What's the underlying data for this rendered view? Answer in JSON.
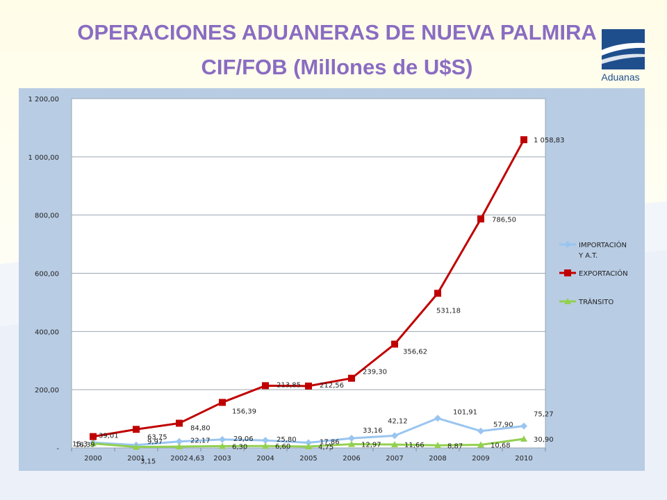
{
  "page": {
    "title_line1": "OPERACIONES ADUANERAS DE NUEVA PALMIRA",
    "title_line2": "CIF/FOB  (Millones de U$S)",
    "logo_text": "Aduanas",
    "colors": {
      "title": "#8a6cc2",
      "panel": "#b8cce4",
      "plot_bg": "#ffffff",
      "logo": "#1f4e8c"
    }
  },
  "chart_data": {
    "type": "line",
    "title": "",
    "xlabel": "",
    "ylabel": "",
    "categories": [
      "2000",
      "2001",
      "2002",
      "2003",
      "2004",
      "2005",
      "2006",
      "2007",
      "2008",
      "2009",
      "2010"
    ],
    "ylim": [
      0,
      1200
    ],
    "yticks": [
      0,
      200,
      400,
      600,
      800,
      1000,
      1200
    ],
    "ytick_labels": [
      "-",
      "200,00",
      "400,00",
      "600,00",
      "800,00",
      "1 000,00",
      "1 200,00"
    ],
    "grid": "horizontal",
    "legend_position": "right",
    "series": [
      {
        "name": "IMPORTACIÓN Y A.T.",
        "name_lines": [
          "IMPORTACIÓN",
          "Y A.T."
        ],
        "color": "#99c5f0",
        "marker": "diamond",
        "values": [
          18.39,
          9.97,
          22.17,
          29.06,
          25.8,
          17.86,
          33.16,
          42.12,
          101.91,
          57.9,
          75.27
        ],
        "labels": [
          "18,39",
          "9,97",
          "22,17",
          "29,06",
          "25,80",
          "17,86",
          "33,16",
          "42,12",
          "101,91",
          "57,90",
          "75,27"
        ]
      },
      {
        "name": "EXPORTACIÓN",
        "name_lines": [
          "EXPORTACIÓN"
        ],
        "color": "#c00000",
        "marker": "square",
        "values": [
          39.01,
          63.75,
          84.8,
          156.39,
          213.85,
          212.56,
          239.3,
          356.62,
          531.18,
          786.5,
          1058.83
        ],
        "labels": [
          "39,01",
          "63,75",
          "84,80",
          "156,39",
          "213,85",
          "212,56",
          "239,30",
          "356,62",
          "531,18",
          "786,50",
          "1 058,83"
        ]
      },
      {
        "name": "TRÁNSITO",
        "name_lines": [
          "TRÁNSITO"
        ],
        "color": "#92d050",
        "marker": "triangle",
        "values": [
          15.3,
          3.15,
          4.63,
          6.3,
          6.6,
          4.75,
          12.97,
          11.66,
          8.87,
          10.68,
          30.9
        ],
        "labels": [
          "15,3",
          "3,15",
          "4,63",
          "6,30",
          "6,60",
          "4,75",
          "12,97",
          "11,66",
          "8,87",
          "10,68",
          "30,90"
        ]
      }
    ]
  }
}
